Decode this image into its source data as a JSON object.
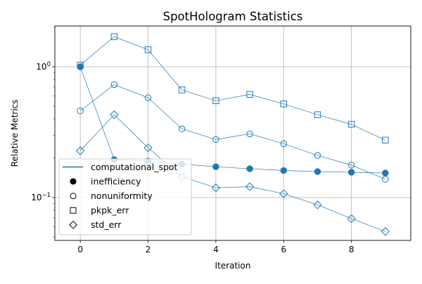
{
  "chart_data": {
    "type": "line",
    "title": "SpotHologram Statistics",
    "xlabel": "Iteration",
    "ylabel": "Relative Metrics",
    "x_ticks": [
      "0",
      "2",
      "4",
      "6",
      "8"
    ],
    "y_ticks": [
      {
        "value": 1.0,
        "base": "10",
        "exp": "0"
      },
      {
        "value": 0.1,
        "base": "10",
        "exp": "−1"
      }
    ],
    "xlim": [
      -0.75,
      9.75
    ],
    "ylim": [
      0.047,
      2.05
    ],
    "y_scale": "log",
    "grid": true,
    "line_color": "#1f77b4",
    "x": [
      0,
      1,
      2,
      3,
      4,
      5,
      6,
      7,
      8,
      9
    ],
    "series": [
      {
        "name": "inefficiency",
        "marker": "filled-circle",
        "values": [
          1.0,
          0.195,
          0.19,
          0.18,
          0.172,
          0.166,
          0.161,
          0.158,
          0.156,
          0.154
        ]
      },
      {
        "name": "nonuniformity",
        "marker": "open-circle",
        "values": [
          0.46,
          0.73,
          0.58,
          0.335,
          0.278,
          0.307,
          0.258,
          0.21,
          0.177,
          0.138
        ]
      },
      {
        "name": "pkpk_err",
        "marker": "open-square",
        "values": [
          1.03,
          1.7,
          1.35,
          0.665,
          0.55,
          0.615,
          0.52,
          0.43,
          0.363,
          0.275
        ]
      },
      {
        "name": "std_err",
        "marker": "open-diamond",
        "values": [
          0.228,
          0.43,
          0.24,
          0.144,
          0.119,
          0.121,
          0.107,
          0.088,
          0.069,
          0.055
        ]
      }
    ],
    "legend": {
      "placement": "lower-left",
      "entries": [
        {
          "label": "computational_spot",
          "marker": "line"
        },
        {
          "label": "inefficiency",
          "marker": "filled-circle"
        },
        {
          "label": "nonuniformity",
          "marker": "open-circle"
        },
        {
          "label": "pkpk_err",
          "marker": "open-square"
        },
        {
          "label": "std_err",
          "marker": "open-diamond"
        }
      ]
    }
  }
}
